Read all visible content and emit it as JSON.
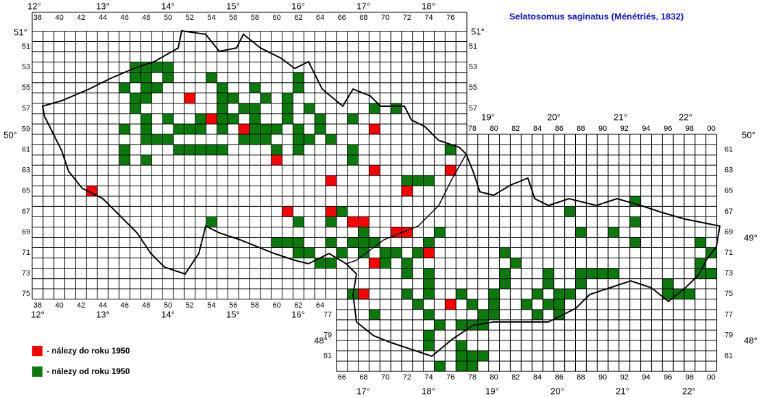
{
  "title": "Selatosomus saginatus (Ménétriés, 1832)",
  "degree_labels": [
    "12°",
    "13°",
    "14°",
    "15°",
    "16°",
    "17°",
    "18°",
    "12°",
    "13°",
    "14°",
    "15°",
    "16°",
    "19°",
    "20°",
    "21°",
    "22°",
    "17°",
    "18°",
    "19°",
    "20°",
    "21°",
    "22°",
    "51°",
    "51°",
    "50°",
    "50°",
    "49°",
    "48°",
    "48°"
  ],
  "columns_top_west": [
    "38",
    "40",
    "42",
    "44",
    "46",
    "48",
    "50",
    "52",
    "54",
    "56",
    "58",
    "60",
    "62",
    "64",
    "66",
    "68",
    "70",
    "72",
    "74",
    "76"
  ],
  "columns_bottom_west": [
    "38",
    "40",
    "42",
    "44",
    "46",
    "48",
    "50",
    "52",
    "54",
    "56",
    "58",
    "60",
    "62",
    "64"
  ],
  "columns_top_east": [
    "78",
    "80",
    "82",
    "84",
    "86",
    "88",
    "90",
    "92",
    "94",
    "96",
    "98",
    "00"
  ],
  "columns_bottom_east": [
    "66",
    "68",
    "70",
    "72",
    "74",
    "76",
    "78",
    "80",
    "82",
    "84",
    "86",
    "88",
    "90",
    "92",
    "94",
    "96",
    "98",
    "00"
  ],
  "rows_left_west": [
    "51",
    "53",
    "55",
    "57",
    "59",
    "61",
    "63",
    "65",
    "67",
    "69",
    "71",
    "73",
    "75"
  ],
  "rows_right_west": [
    "51",
    "53",
    "55",
    "57"
  ],
  "rows_left_east": [
    "77",
    "79",
    "81"
  ],
  "rows_right_east": [
    "61",
    "63",
    "65",
    "67",
    "69",
    "71",
    "73",
    "75",
    "77",
    "79",
    "81"
  ],
  "legend": [
    {
      "label": "- nálezy do roku 1950",
      "color": "#ff0000",
      "squares": [
        [
          52,
          56
        ],
        [
          54,
          58
        ],
        [
          57,
          59
        ],
        [
          69,
          59
        ],
        [
          60,
          62
        ],
        [
          69,
          63
        ],
        [
          76,
          63
        ],
        [
          65,
          64
        ],
        [
          72,
          65
        ],
        [
          43,
          65
        ],
        [
          61,
          67
        ],
        [
          65,
          67
        ],
        [
          67,
          68
        ],
        [
          68,
          68
        ],
        [
          71,
          69
        ],
        [
          72,
          69
        ],
        [
          74,
          71
        ],
        [
          69,
          72
        ],
        [
          68,
          75
        ],
        [
          76,
          76
        ]
      ]
    },
    {
      "label": "- nálezy od roku 1950",
      "color": "#0a7a0a",
      "squares": [
        [
          47,
          53
        ],
        [
          48,
          53
        ],
        [
          49,
          53
        ],
        [
          50,
          53
        ],
        [
          47,
          54
        ],
        [
          48,
          54
        ],
        [
          50,
          54
        ],
        [
          54,
          54
        ],
        [
          62,
          54
        ],
        [
          46,
          55
        ],
        [
          48,
          55
        ],
        [
          49,
          55
        ],
        [
          55,
          55
        ],
        [
          58,
          55
        ],
        [
          62,
          55
        ],
        [
          47,
          56
        ],
        [
          48,
          56
        ],
        [
          55,
          56
        ],
        [
          56,
          56
        ],
        [
          59,
          56
        ],
        [
          61,
          56
        ],
        [
          47,
          57
        ],
        [
          55,
          57
        ],
        [
          57,
          57
        ],
        [
          58,
          57
        ],
        [
          61,
          57
        ],
        [
          63,
          57
        ],
        [
          69,
          57
        ],
        [
          71,
          57
        ],
        [
          48,
          58
        ],
        [
          50,
          58
        ],
        [
          53,
          58
        ],
        [
          55,
          58
        ],
        [
          56,
          58
        ],
        [
          58,
          58
        ],
        [
          61,
          58
        ],
        [
          64,
          58
        ],
        [
          67,
          58
        ],
        [
          46,
          59
        ],
        [
          48,
          59
        ],
        [
          51,
          59
        ],
        [
          52,
          59
        ],
        [
          53,
          59
        ],
        [
          55,
          59
        ],
        [
          58,
          59
        ],
        [
          59,
          59
        ],
        [
          60,
          59
        ],
        [
          62,
          59
        ],
        [
          64,
          59
        ],
        [
          48,
          60
        ],
        [
          49,
          60
        ],
        [
          50,
          60
        ],
        [
          57,
          60
        ],
        [
          58,
          60
        ],
        [
          59,
          60
        ],
        [
          62,
          60
        ],
        [
          63,
          60
        ],
        [
          65,
          60
        ],
        [
          46,
          61
        ],
        [
          51,
          61
        ],
        [
          52,
          61
        ],
        [
          53,
          61
        ],
        [
          54,
          61
        ],
        [
          55,
          61
        ],
        [
          60,
          61
        ],
        [
          62,
          61
        ],
        [
          67,
          61
        ],
        [
          76,
          61
        ],
        [
          46,
          62
        ],
        [
          48,
          62
        ],
        [
          67,
          62
        ],
        [
          73,
          64
        ],
        [
          72,
          64
        ],
        [
          74,
          64
        ],
        [
          93,
          66
        ],
        [
          66,
          67
        ],
        [
          87,
          67
        ],
        [
          54,
          68
        ],
        [
          62,
          68
        ],
        [
          65,
          68
        ],
        [
          93,
          68
        ],
        [
          68,
          69
        ],
        [
          75,
          69
        ],
        [
          88,
          69
        ],
        [
          91,
          69
        ],
        [
          60,
          70
        ],
        [
          61,
          70
        ],
        [
          62,
          70
        ],
        [
          65,
          70
        ],
        [
          67,
          70
        ],
        [
          68,
          70
        ],
        [
          69,
          70
        ],
        [
          74,
          70
        ],
        [
          93,
          70
        ],
        [
          99,
          70
        ],
        [
          62,
          71
        ],
        [
          63,
          71
        ],
        [
          66,
          71
        ],
        [
          68,
          71
        ],
        [
          70,
          71
        ],
        [
          71,
          71
        ],
        [
          73,
          71
        ],
        [
          81,
          71
        ],
        [
          100,
          71
        ],
        [
          64,
          72
        ],
        [
          65,
          72
        ],
        [
          70,
          72
        ],
        [
          72,
          72
        ],
        [
          82,
          72
        ],
        [
          99,
          72
        ],
        [
          72,
          73
        ],
        [
          74,
          73
        ],
        [
          81,
          73
        ],
        [
          85,
          73
        ],
        [
          88,
          73
        ],
        [
          89,
          73
        ],
        [
          90,
          73
        ],
        [
          91,
          73
        ],
        [
          99,
          73
        ],
        [
          100,
          73
        ],
        [
          74,
          74
        ],
        [
          81,
          74
        ],
        [
          85,
          74
        ],
        [
          88,
          74
        ],
        [
          96,
          74
        ],
        [
          67,
          75
        ],
        [
          72,
          75
        ],
        [
          74,
          75
        ],
        [
          77,
          75
        ],
        [
          80,
          75
        ],
        [
          84,
          75
        ],
        [
          86,
          75
        ],
        [
          87,
          75
        ],
        [
          96,
          75
        ],
        [
          97,
          75
        ],
        [
          98,
          75
        ],
        [
          73,
          76
        ],
        [
          78,
          76
        ],
        [
          80,
          76
        ],
        [
          83,
          76
        ],
        [
          85,
          76
        ],
        [
          86,
          76
        ],
        [
          69,
          77
        ],
        [
          74,
          77
        ],
        [
          79,
          77
        ],
        [
          80,
          77
        ],
        [
          84,
          77
        ],
        [
          86,
          77
        ],
        [
          75,
          78
        ],
        [
          77,
          78
        ],
        [
          78,
          78
        ],
        [
          79,
          78
        ],
        [
          74,
          79
        ],
        [
          74,
          80
        ],
        [
          77,
          80
        ],
        [
          77,
          81
        ],
        [
          78,
          81
        ],
        [
          79,
          81
        ],
        [
          75,
          82
        ],
        [
          77,
          82
        ],
        [
          78,
          82
        ]
      ]
    }
  ]
}
